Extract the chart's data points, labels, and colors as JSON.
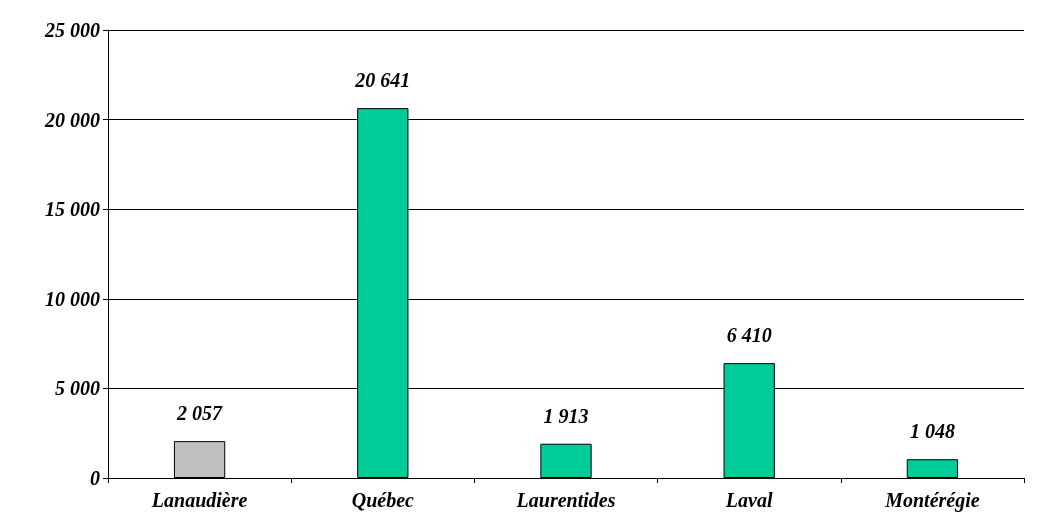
{
  "chart_data": {
    "type": "bar",
    "categories": [
      "Lanaudière",
      "Québec",
      "Laurentides",
      "Laval",
      "Montérégie"
    ],
    "values": [
      2057,
      20641,
      1913,
      6410,
      1048
    ],
    "colors": [
      "#c0c0c0",
      "#00cc99",
      "#00cc99",
      "#00cc99",
      "#00cc99"
    ],
    "value_labels": [
      "2 057",
      "20 641",
      "1 913",
      "6 410",
      "1 048"
    ],
    "ylim": [
      0,
      25000
    ],
    "yticks": [
      {
        "value": 0,
        "label": "0"
      },
      {
        "value": 5000,
        "label": "5 000"
      },
      {
        "value": 10000,
        "label": "10 000"
      },
      {
        "value": 15000,
        "label": "15 000"
      },
      {
        "value": 20000,
        "label": "20 000"
      },
      {
        "value": 25000,
        "label": "25 000"
      }
    ],
    "grid": "y"
  }
}
